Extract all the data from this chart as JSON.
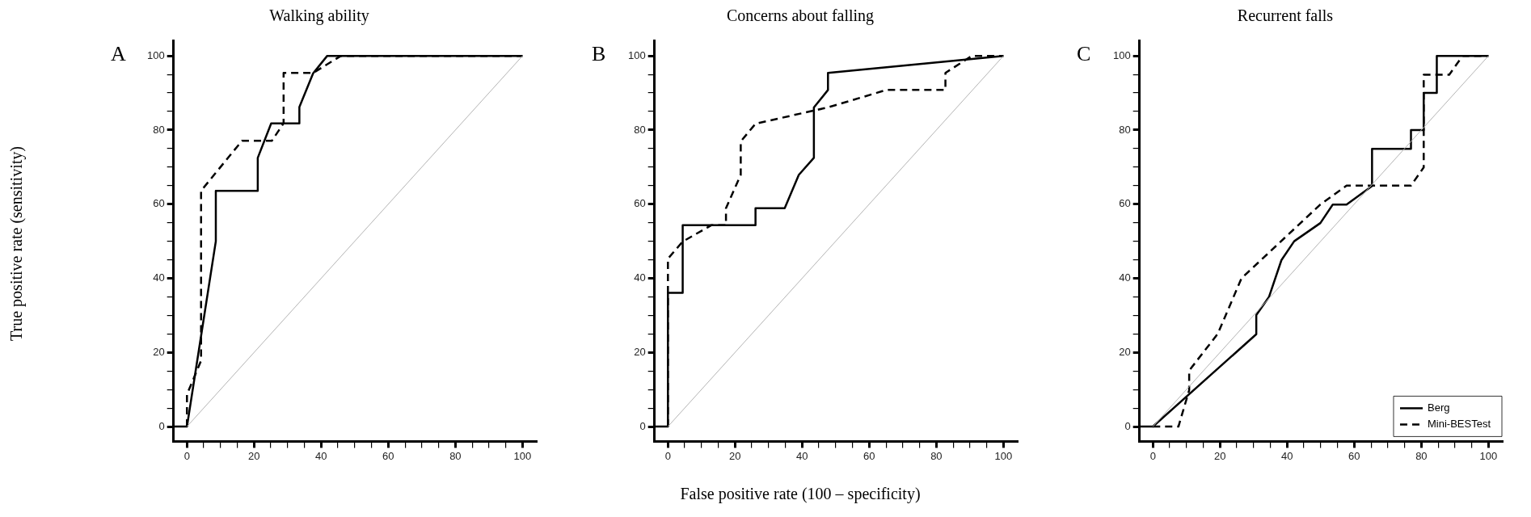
{
  "chart_data": [
    {
      "type": "line",
      "title": "Walking ability",
      "ylabel": "True positive rate (sensitivity)",
      "annotations": [
        "A"
      ],
      "marker": "none",
      "xlim": [
        -4,
        104
      ],
      "ylim": [
        -4,
        104
      ],
      "xticks": [
        0,
        {
          "value": 5,
          "label": null
        },
        {
          "value": 10,
          "label": null
        },
        {
          "value": 15,
          "label": null
        },
        20,
        {
          "value": 25,
          "label": null
        },
        {
          "value": 30,
          "label": null
        },
        {
          "value": 35,
          "label": null
        },
        40,
        {
          "value": 45,
          "label": null
        },
        {
          "value": 50,
          "label": null
        },
        {
          "value": 55,
          "label": null
        },
        60,
        {
          "value": 65,
          "label": null
        },
        {
          "value": 70,
          "label": null
        },
        {
          "value": 75,
          "label": null
        },
        80,
        {
          "value": 85,
          "label": null
        },
        {
          "value": 90,
          "label": null
        },
        {
          "value": 95,
          "label": null
        },
        100
      ],
      "yticks": [
        0,
        {
          "value": 5,
          "label": null
        },
        {
          "value": 10,
          "label": null
        },
        {
          "value": 15,
          "label": null
        },
        20,
        {
          "value": 25,
          "label": null
        },
        {
          "value": 30,
          "label": null
        },
        {
          "value": 35,
          "label": null
        },
        40,
        {
          "value": 45,
          "label": null
        },
        {
          "value": 50,
          "label": null
        },
        {
          "value": 55,
          "label": null
        },
        60,
        {
          "value": 65,
          "label": null
        },
        {
          "value": 70,
          "label": null
        },
        {
          "value": 75,
          "label": null
        },
        80,
        {
          "value": 85,
          "label": null
        },
        {
          "value": 90,
          "label": null
        },
        {
          "value": 95,
          "label": null
        },
        100
      ],
      "series": [
        {
          "type": "line",
          "color": "#b4b4b4",
          "x": [
            0,
            100
          ],
          "values": [
            0,
            100
          ]
        },
        {
          "type": "line",
          "color": "#000000",
          "line_style": "solid",
          "x": [
            -4,
            0,
            8.6,
            8.6,
            21.1,
            21.1,
            25.1,
            33.5,
            33.5,
            37.6,
            41.8,
            100
          ],
          "values": [
            0,
            0,
            50,
            63.6,
            63.6,
            72.5,
            81.8,
            81.8,
            86.2,
            95.3,
            100,
            100
          ]
        },
        {
          "type": "line",
          "color": "#000000",
          "line_style": "dashed",
          "x": [
            0,
            0,
            3.3,
            4.2,
            4.2,
            16.4,
            25.3,
            28.8,
            28.8,
            37.6,
            45.9,
            100
          ],
          "values": [
            0,
            8.7,
            15.8,
            17.8,
            63.6,
            77.1,
            77.1,
            81.8,
            95.4,
            95.4,
            100,
            100
          ]
        }
      ]
    },
    {
      "type": "line",
      "title": "Concerns about falling",
      "xlabel": "False positive rate (100 – specificity)",
      "annotations": [
        "B"
      ],
      "marker": "none",
      "xlim": [
        -4,
        104
      ],
      "ylim": [
        -4,
        104
      ],
      "xticks": [
        0,
        {
          "value": 5,
          "label": null
        },
        {
          "value": 10,
          "label": null
        },
        {
          "value": 15,
          "label": null
        },
        20,
        {
          "value": 25,
          "label": null
        },
        {
          "value": 30,
          "label": null
        },
        {
          "value": 35,
          "label": null
        },
        40,
        {
          "value": 45,
          "label": null
        },
        {
          "value": 50,
          "label": null
        },
        {
          "value": 55,
          "label": null
        },
        60,
        {
          "value": 65,
          "label": null
        },
        {
          "value": 70,
          "label": null
        },
        {
          "value": 75,
          "label": null
        },
        80,
        {
          "value": 85,
          "label": null
        },
        {
          "value": 90,
          "label": null
        },
        {
          "value": 95,
          "label": null
        },
        100
      ],
      "yticks": [
        0,
        {
          "value": 5,
          "label": null
        },
        {
          "value": 10,
          "label": null
        },
        {
          "value": 15,
          "label": null
        },
        20,
        {
          "value": 25,
          "label": null
        },
        {
          "value": 30,
          "label": null
        },
        {
          "value": 35,
          "label": null
        },
        40,
        {
          "value": 45,
          "label": null
        },
        {
          "value": 50,
          "label": null
        },
        {
          "value": 55,
          "label": null
        },
        60,
        {
          "value": 65,
          "label": null
        },
        {
          "value": 70,
          "label": null
        },
        {
          "value": 75,
          "label": null
        },
        80,
        {
          "value": 85,
          "label": null
        },
        {
          "value": 90,
          "label": null
        },
        {
          "value": 95,
          "label": null
        },
        100
      ],
      "series": [
        {
          "type": "line",
          "color": "#b4b4b4",
          "x": [
            0,
            100
          ],
          "values": [
            0,
            100
          ]
        },
        {
          "type": "line",
          "color": "#000000",
          "line_style": "solid",
          "x": [
            -4,
            0,
            0,
            4.4,
            4.4,
            26.1,
            26.1,
            34.8,
            39,
            43.5,
            43.5,
            47.7,
            47.7,
            100
          ],
          "values": [
            0,
            0,
            36.1,
            36.1,
            54.3,
            54.3,
            58.9,
            58.9,
            67.9,
            72.5,
            86.1,
            90.8,
            95.4,
            100
          ]
        },
        {
          "type": "line",
          "color": "#000000",
          "line_style": "dashed",
          "x": [
            0,
            0,
            0,
            4.4,
            12.9,
            17.3,
            17.3,
            21.7,
            21.7,
            26.1,
            47.7,
            65.1,
            82.7,
            82.7,
            90.6,
            100
          ],
          "values": [
            0,
            36.3,
            45.3,
            49.9,
            54.3,
            54.3,
            58.9,
            67.9,
            76.9,
            81.7,
            86.1,
            90.8,
            90.8,
            95.4,
            100,
            100
          ]
        }
      ]
    },
    {
      "type": "line",
      "title": "Recurrent falls",
      "annotations": [
        "C"
      ],
      "marker": "none",
      "legend": "bottom right",
      "xlim": [
        -4,
        104
      ],
      "ylim": [
        -4,
        104
      ],
      "xticks": [
        0,
        {
          "value": 5,
          "label": null
        },
        {
          "value": 10,
          "label": null
        },
        {
          "value": 15,
          "label": null
        },
        20,
        {
          "value": 25,
          "label": null
        },
        {
          "value": 30,
          "label": null
        },
        {
          "value": 35,
          "label": null
        },
        40,
        {
          "value": 45,
          "label": null
        },
        {
          "value": 50,
          "label": null
        },
        {
          "value": 55,
          "label": null
        },
        60,
        {
          "value": 65,
          "label": null
        },
        {
          "value": 70,
          "label": null
        },
        {
          "value": 75,
          "label": null
        },
        80,
        {
          "value": 85,
          "label": null
        },
        {
          "value": 90,
          "label": null
        },
        {
          "value": 95,
          "label": null
        },
        100
      ],
      "yticks": [
        0,
        {
          "value": 5,
          "label": null
        },
        {
          "value": 10,
          "label": null
        },
        {
          "value": 15,
          "label": null
        },
        20,
        {
          "value": 25,
          "label": null
        },
        {
          "value": 30,
          "label": null
        },
        {
          "value": 35,
          "label": null
        },
        40,
        {
          "value": 45,
          "label": null
        },
        {
          "value": 50,
          "label": null
        },
        {
          "value": 55,
          "label": null
        },
        60,
        {
          "value": 65,
          "label": null
        },
        {
          "value": 70,
          "label": null
        },
        {
          "value": 75,
          "label": null
        },
        80,
        {
          "value": 85,
          "label": null
        },
        {
          "value": 90,
          "label": null
        },
        {
          "value": 95,
          "label": null
        },
        100
      ],
      "series": [
        {
          "type": "line",
          "color": "#b4b4b4",
          "x": [
            0,
            100
          ],
          "values": [
            0,
            100
          ]
        },
        {
          "type": "line",
          "name": "Berg",
          "color": "#000000",
          "line_style": "solid",
          "x": [
            -4,
            0,
            30.8,
            30.8,
            34.6,
            38.3,
            42.1,
            49.9,
            53.6,
            57.7,
            65.3,
            65.3,
            76.9,
            76.9,
            80.7,
            80.7,
            84.6,
            84.6,
            100
          ],
          "values": [
            0,
            0,
            24.9,
            30.1,
            35,
            44.9,
            50,
            54.9,
            59.9,
            59.9,
            64.9,
            74.9,
            74.9,
            80,
            80,
            90,
            90,
            100,
            100
          ]
        },
        {
          "type": "line",
          "name": "Mini-BESTest",
          "color": "#000000",
          "line_style": "dashed",
          "x": [
            0,
            7.6,
            10.8,
            10.8,
            19.3,
            26.4,
            49.9,
            57.7,
            76.9,
            80.7,
            80.7,
            88.3,
            92.3,
            100
          ],
          "values": [
            0,
            0,
            9.8,
            15.1,
            25,
            40,
            59.9,
            65,
            65,
            69.9,
            94.9,
            94.9,
            100,
            100
          ]
        }
      ]
    }
  ]
}
